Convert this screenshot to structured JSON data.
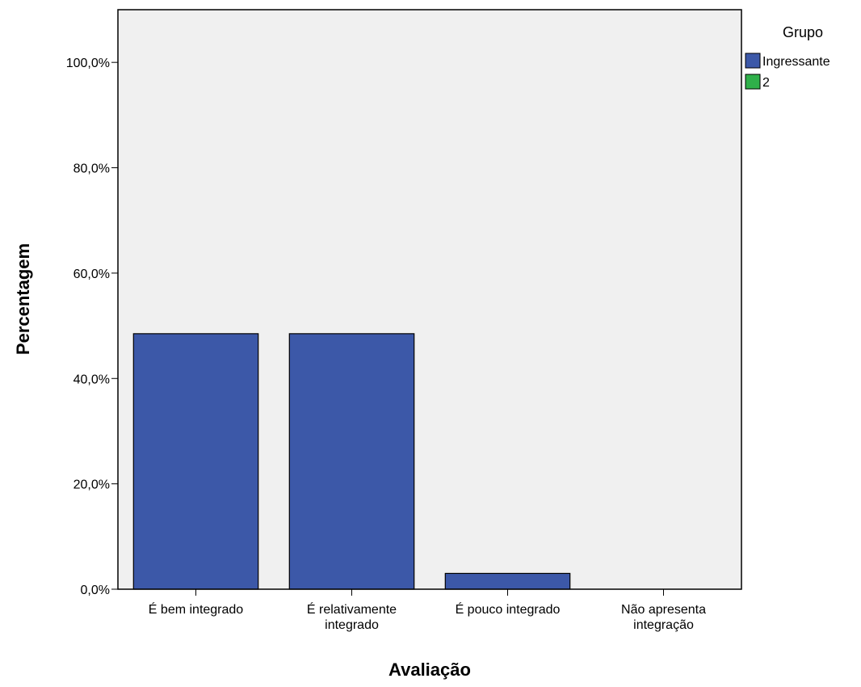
{
  "chart_data": {
    "type": "bar",
    "title": "",
    "xlabel": "Avaliação",
    "ylabel": "Percentagem",
    "categories": [
      [
        "É bem integrado"
      ],
      [
        "É relativamente",
        "integrado"
      ],
      [
        "É pouco integrado"
      ],
      [
        "Não apresenta",
        "integração"
      ]
    ],
    "series": [
      {
        "name": "Ingressante",
        "color": "#3c58a8",
        "values": [
          48.5,
          48.5,
          3.0,
          0.0
        ]
      },
      {
        "name": "2",
        "color": "#2fb04a",
        "values": [
          null,
          null,
          null,
          null
        ]
      }
    ],
    "ylim": [
      0,
      110
    ],
    "yticks": [
      0,
      20,
      40,
      60,
      80,
      100
    ],
    "ytick_labels": [
      "0,0%",
      "20,0%",
      "40,0%",
      "60,0%",
      "80,0%",
      "100,0%"
    ],
    "legend": {
      "title": "Grupo",
      "placement": "right"
    },
    "plot_background": "#f0f0f0",
    "grid": false
  }
}
